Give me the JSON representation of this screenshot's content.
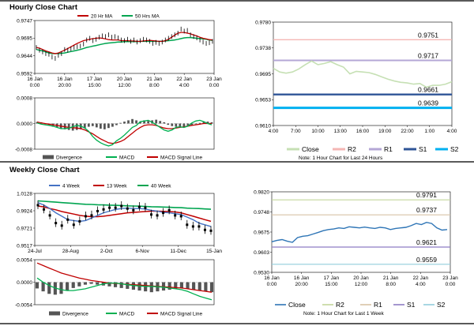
{
  "titles": {
    "hourly": "Hourly Close Chart",
    "weekly": "Weekly Close Chart"
  },
  "notes": {
    "hourly": "Note: 1 Hour Chart for Last 24 Hours",
    "weekly": "Note: 1 Hour Chart for Last 1 Week"
  },
  "colors": {
    "ma_red": "#c00000",
    "ma_green": "#00a550",
    "macd_green": "#00b050",
    "divergence": "#555555",
    "close_hourly": "#c6e0b4",
    "close_weekly": "#2e75b6",
    "r2": "#f4b6b4",
    "r1": "#b4a7d6",
    "s1": "#2f5597",
    "s2": "#00b0f0",
    "r2_weekly": "#c3d69b",
    "r1_weekly": "#d9c3a5",
    "s1_weekly": "#8e7cc3",
    "s2_weekly": "#92cddc",
    "blue_4w": "#4472c4"
  },
  "chart_data": [
    {
      "id": "hourly-price",
      "type": "line",
      "legend": [
        "20 Hr MA",
        "50 Hrs MA"
      ],
      "y_ticks": [
        "0.9747",
        "0.9695",
        "0.9644",
        "0.9592"
      ],
      "ylim": [
        0.9592,
        0.9747
      ],
      "x_ticks": [
        [
          "16 Jan",
          "0:00"
        ],
        [
          "16 Jan",
          "20:00"
        ],
        [
          "17 Jan",
          "15:00"
        ],
        [
          "20 Jan",
          "12:00"
        ],
        [
          "21 Jan",
          "8:00"
        ],
        [
          "22 Jan",
          "4:00"
        ],
        [
          "23 Jan",
          "0:00"
        ]
      ],
      "close": [
        0.9668,
        0.966,
        0.9655,
        0.965,
        0.9648,
        0.964,
        0.9636,
        0.9645,
        0.965,
        0.9662,
        0.966,
        0.9664,
        0.9668,
        0.967,
        0.9672,
        0.9678,
        0.969,
        0.9695,
        0.9688,
        0.9692,
        0.9698,
        0.9702,
        0.97,
        0.9705,
        0.9698,
        0.97,
        0.9696,
        0.969,
        0.9688,
        0.9692,
        0.9686,
        0.969,
        0.9684,
        0.9688,
        0.9692,
        0.969,
        0.9686,
        0.968,
        0.9683,
        0.968,
        0.9684,
        0.969,
        0.9695,
        0.97,
        0.9705,
        0.971,
        0.9722,
        0.9716,
        0.9718,
        0.9705,
        0.97,
        0.9696,
        0.969,
        0.9684,
        0.968,
        0.9682,
        0.9686
      ],
      "series": [
        {
          "name": "20 Hr MA",
          "values": [
            0.9668,
            0.9666,
            0.9662,
            0.9658,
            0.9655,
            0.9652,
            0.965,
            0.9652,
            0.9656,
            0.966,
            0.9665,
            0.967,
            0.9675,
            0.968,
            0.9684,
            0.9688,
            0.969,
            0.9692,
            0.9694,
            0.9695,
            0.9696,
            0.9695,
            0.9693,
            0.9691,
            0.969,
            0.969,
            0.969,
            0.9688,
            0.9688,
            0.9688,
            0.9687,
            0.9687,
            0.9686,
            0.9686,
            0.9687,
            0.9688,
            0.9689,
            0.9688,
            0.9687,
            0.9686,
            0.9686,
            0.9688,
            0.9692,
            0.9698,
            0.9704,
            0.971,
            0.9712,
            0.9712,
            0.971,
            0.9708,
            0.9705,
            0.9702,
            0.9698,
            0.9695,
            0.9693,
            0.9691,
            0.969
          ]
        },
        {
          "name": "50 Hrs MA",
          "values": [
            0.9662,
            0.966,
            0.9658,
            0.9655,
            0.9652,
            0.965,
            0.965,
            0.965,
            0.9651,
            0.9652,
            0.9654,
            0.9656,
            0.9658,
            0.966,
            0.9662,
            0.9665,
            0.9668,
            0.967,
            0.9672,
            0.9674,
            0.9676,
            0.9678,
            0.968,
            0.9681,
            0.9682,
            0.9683,
            0.9684,
            0.9684,
            0.9685,
            0.9685,
            0.9685,
            0.9685,
            0.9685,
            0.9686,
            0.9686,
            0.9686,
            0.9686,
            0.9686,
            0.9686,
            0.9686,
            0.9686,
            0.9687,
            0.9688,
            0.9689,
            0.969,
            0.9692,
            0.9694,
            0.9696,
            0.9697,
            0.9697,
            0.9696,
            0.9695,
            0.9694,
            0.9693,
            0.9692,
            0.969,
            0.9689
          ]
        }
      ]
    },
    {
      "id": "hourly-macd",
      "type": "line",
      "legend": [
        "Divergence",
        "MACD",
        "MACD Signal Line"
      ],
      "y_ticks": [
        "0.0008",
        "0.0000",
        "-0.0008"
      ],
      "ylim": [
        -0.0008,
        0.0008
      ],
      "series": [
        {
          "name": "Divergence",
          "values": [
            5e-05,
            4e-05,
            -2e-05,
            -5e-05,
            -0.0001,
            -0.00012,
            -0.00015,
            -0.00018,
            -0.0002,
            -0.00022,
            -0.0002,
            -0.00018,
            -0.00015,
            -0.0001,
            -8e-05,
            -0.00012,
            -0.00016,
            -0.00018,
            -0.00014,
            -0.0001,
            -5e-05,
            2e-05,
            6e-05,
            0.0001,
            0.00014,
            0.0001,
            6e-05,
            0.0001,
            8e-05,
            0.0001,
            0.00012,
            8e-05,
            4e-05,
            -4e-05,
            -8e-05,
            -0.0001,
            -0.00012,
            -0.0001,
            -8e-05,
            -5e-05,
            -2e-05,
            2e-05,
            5e-05,
            6e-05,
            4e-05
          ]
        },
        {
          "name": "MACD",
          "values": [
            2e-05,
            -2e-05,
            -4e-05,
            -6e-05,
            -8e-05,
            -0.00012,
            -0.00016,
            -0.00016,
            -0.00014,
            -0.0001,
            -6e-05,
            -8e-05,
            -0.00014,
            -0.00024,
            -0.0004,
            -0.00052,
            -0.0006,
            -0.00066,
            -0.0007,
            -0.00066,
            -0.00054,
            -0.00046,
            -0.00036,
            -0.00024,
            -0.00012,
            -6e-05,
            6e-05,
            8e-05,
            0.0001,
            4e-05,
            -4e-05,
            -0.00012,
            -0.0002,
            -0.00024,
            -0.0002,
            -0.00012,
            -0.0001,
            -0.00012,
            -8e-05,
            2e-05,
            8e-05,
            0.0001,
            6e-05,
            0.0,
            -4e-05
          ]
        },
        {
          "name": "MACD Signal Line",
          "values": [
            5e-05,
            2e-05,
            0.0,
            -2e-05,
            -4e-05,
            -6e-05,
            -8e-05,
            -0.0001,
            -0.00012,
            -0.00013,
            -0.00014,
            -0.00016,
            -0.0002,
            -0.00026,
            -0.00032,
            -0.0004,
            -0.00048,
            -0.00054,
            -0.0006,
            -0.00062,
            -0.0006,
            -0.00056,
            -0.0005,
            -0.0004,
            -0.0003,
            -0.0002,
            -0.00012,
            -6e-05,
            -4e-05,
            -4e-05,
            -6e-05,
            -0.0001,
            -0.00014,
            -0.00016,
            -0.00016,
            -0.00014,
            -0.00012,
            -0.0001,
            -8e-05,
            -6e-05,
            -4e-05,
            -2e-05,
            0.0,
            0.0,
            0.0
          ]
        }
      ]
    },
    {
      "id": "hourly-levels",
      "type": "line",
      "y_ticks": [
        "0.9780",
        "0.9738",
        "0.9695",
        "0.9653",
        "0.9610"
      ],
      "ylim": [
        0.961,
        0.978
      ],
      "x_ticks": [
        "4:00",
        "7:00",
        "10:00",
        "13:00",
        "16:00",
        "19:00",
        "22:00",
        "1:00",
        "4:00"
      ],
      "legend": [
        "Close",
        "R2",
        "R1",
        "S1",
        "S2"
      ],
      "levels": [
        {
          "name": "R2",
          "value": 0.9751,
          "label": "0.9751"
        },
        {
          "name": "R1",
          "value": 0.9717,
          "label": "0.9717"
        },
        {
          "name": "S1",
          "value": 0.9661,
          "label": "0.9661"
        },
        {
          "name": "S2",
          "value": 0.9639,
          "label": "0.9639"
        }
      ],
      "close": [
        0.9704,
        0.9698,
        0.9696,
        0.9698,
        0.9703,
        0.971,
        0.9716,
        0.971,
        0.9712,
        0.9715,
        0.971,
        0.9706,
        0.9695,
        0.9699,
        0.9698,
        0.9697,
        0.9694,
        0.969,
        0.9686,
        0.9683,
        0.9681,
        0.968,
        0.9678,
        0.9679,
        0.9673,
        0.9676,
        0.9676,
        0.9678,
        0.9682
      ]
    },
    {
      "id": "weekly-price",
      "type": "line",
      "legend": [
        "4 Week",
        "13 Week",
        "40 Week"
      ],
      "y_ticks": [
        "1.0128",
        "0.9924",
        "0.9721",
        "0.9517"
      ],
      "ylim": [
        0.9517,
        1.0128
      ],
      "x_ticks": [
        "24-Jul",
        "28-Aug",
        "2-Oct",
        "6-Nov",
        "11-Dec",
        "15-Jan"
      ],
      "candles": [
        0.999,
        0.994,
        0.987,
        0.978,
        0.975,
        0.982,
        0.976,
        0.98,
        0.986,
        0.987,
        0.992,
        0.994,
        0.996,
        0.996,
        0.998,
        0.995,
        0.993,
        0.997,
        0.996,
        0.988,
        0.987,
        0.99,
        0.993,
        0.987,
        0.986,
        0.976,
        0.974,
        0.974,
        0.97,
        0.969
      ],
      "series": [
        {
          "name": "4 Week",
          "values": [
            1.002,
            0.999,
            0.995,
            0.99,
            0.986,
            0.982,
            0.981,
            0.98,
            0.981,
            0.984,
            0.987,
            0.99,
            0.992,
            0.994,
            0.995,
            0.9955,
            0.995,
            0.995,
            0.9945,
            0.993,
            0.992,
            0.9905,
            0.99,
            0.989,
            0.988,
            0.985,
            0.982,
            0.978,
            0.976,
            0.974
          ]
        },
        {
          "name": "13 Week",
          "values": [
            0.998,
            0.997,
            0.995,
            0.9935,
            0.9915,
            0.99,
            0.9885,
            0.987,
            0.986,
            0.9855,
            0.9855,
            0.986,
            0.987,
            0.988,
            0.989,
            0.99,
            0.9905,
            0.991,
            0.9915,
            0.992,
            0.992,
            0.9918,
            0.9915,
            0.991,
            0.99,
            0.988,
            0.986,
            0.984,
            0.982,
            0.98
          ]
        },
        {
          "name": "40 Week",
          "values": [
            1.004,
            1.0035,
            1.003,
            1.0025,
            1.002,
            1.0015,
            1.001,
            1.0005,
            1.0,
            0.9998,
            0.9995,
            0.9993,
            0.999,
            0.9988,
            0.9985,
            0.9982,
            0.998,
            0.9978,
            0.9975,
            0.9972,
            0.997,
            0.9968,
            0.9965,
            0.9962,
            0.996,
            0.9955,
            0.9952,
            0.995,
            0.9946,
            0.9942
          ]
        }
      ]
    },
    {
      "id": "weekly-macd",
      "type": "line",
      "legend": [
        "Divergence",
        "MACD",
        "MACD Signal Line"
      ],
      "y_ticks": [
        "0.0054",
        "0.0000",
        "-0.0054"
      ],
      "ylim": [
        -0.0054,
        0.0054
      ],
      "series": [
        {
          "name": "Divergence",
          "values": [
            -0.0015,
            -0.0022,
            -0.0028,
            -0.003,
            -0.0028,
            -0.002,
            -0.0014,
            -0.001,
            -0.0006,
            -0.0004,
            -0.0006,
            -0.0008,
            -0.001,
            -0.0012,
            -0.0014,
            -0.0016,
            -0.0018,
            -0.002,
            -0.0022,
            -0.0024,
            -0.0022,
            -0.002,
            -0.0018,
            -0.0016,
            -0.0014,
            -0.0016,
            -0.0018,
            -0.002,
            -0.0022,
            -0.0024
          ]
        },
        {
          "name": "MACD",
          "values": [
            0.001,
            0.0,
            -0.0008,
            -0.0014,
            -0.0018,
            -0.002,
            -0.002,
            -0.0018,
            -0.0016,
            -0.0012,
            -0.0008,
            -0.0004,
            -0.0002,
            -0.0002,
            -0.0004,
            -0.0006,
            -0.0008,
            -0.0009,
            -0.001,
            -0.001,
            -0.0011,
            -0.0012,
            -0.0014,
            -0.0016,
            -0.0018,
            -0.0022,
            -0.0028,
            -0.0034,
            -0.0038,
            -0.0042
          ]
        },
        {
          "name": "MACD Signal Line",
          "values": [
            0.0046,
            0.004,
            0.0034,
            0.0028,
            0.0022,
            0.0018,
            0.0014,
            0.001,
            0.0007,
            0.0004,
            0.0002,
            0.0,
            -0.0002,
            -0.0003,
            -0.0004,
            -0.0005,
            -0.0006,
            -0.0007,
            -0.0008,
            -0.0009,
            -0.001,
            -0.0011,
            -0.0012,
            -0.0013,
            -0.0014,
            -0.0016,
            -0.0018,
            -0.002,
            -0.0022,
            -0.0024
          ]
        }
      ]
    },
    {
      "id": "weekly-levels",
      "type": "line",
      "y_ticks": [
        "0.9820",
        "0.9748",
        "0.9675",
        "0.9603",
        "0.9530"
      ],
      "ylim": [
        0.953,
        0.982
      ],
      "x_ticks": [
        [
          "16 Jan",
          "0:00"
        ],
        [
          "16 Jan",
          "20:00"
        ],
        [
          "17 Jan",
          "15:00"
        ],
        [
          "20 Jan",
          "12:00"
        ],
        [
          "21 Jan",
          "8:00"
        ],
        [
          "22 Jan",
          "4:00"
        ],
        [
          "23 Jan",
          "0:00"
        ]
      ],
      "legend": [
        "Close",
        "R2",
        "R1",
        "S1",
        "S2"
      ],
      "levels": [
        {
          "name": "R2",
          "value": 0.9791,
          "label": "0.9791"
        },
        {
          "name": "R1",
          "value": 0.9737,
          "label": "0.9737"
        },
        {
          "name": "S1",
          "value": 0.9621,
          "label": "0.9621"
        },
        {
          "name": "S2",
          "value": 0.9559,
          "label": "0.9559"
        }
      ],
      "close": [
        0.964,
        0.9645,
        0.9648,
        0.9642,
        0.9638,
        0.9655,
        0.966,
        0.9662,
        0.9668,
        0.9674,
        0.968,
        0.9684,
        0.9686,
        0.969,
        0.9688,
        0.9694,
        0.9692,
        0.969,
        0.9693,
        0.969,
        0.9688,
        0.9692,
        0.969,
        0.9684,
        0.9688,
        0.969,
        0.9692,
        0.9698,
        0.9706,
        0.9702,
        0.971,
        0.9706,
        0.969,
        0.9682,
        0.9684
      ]
    }
  ]
}
